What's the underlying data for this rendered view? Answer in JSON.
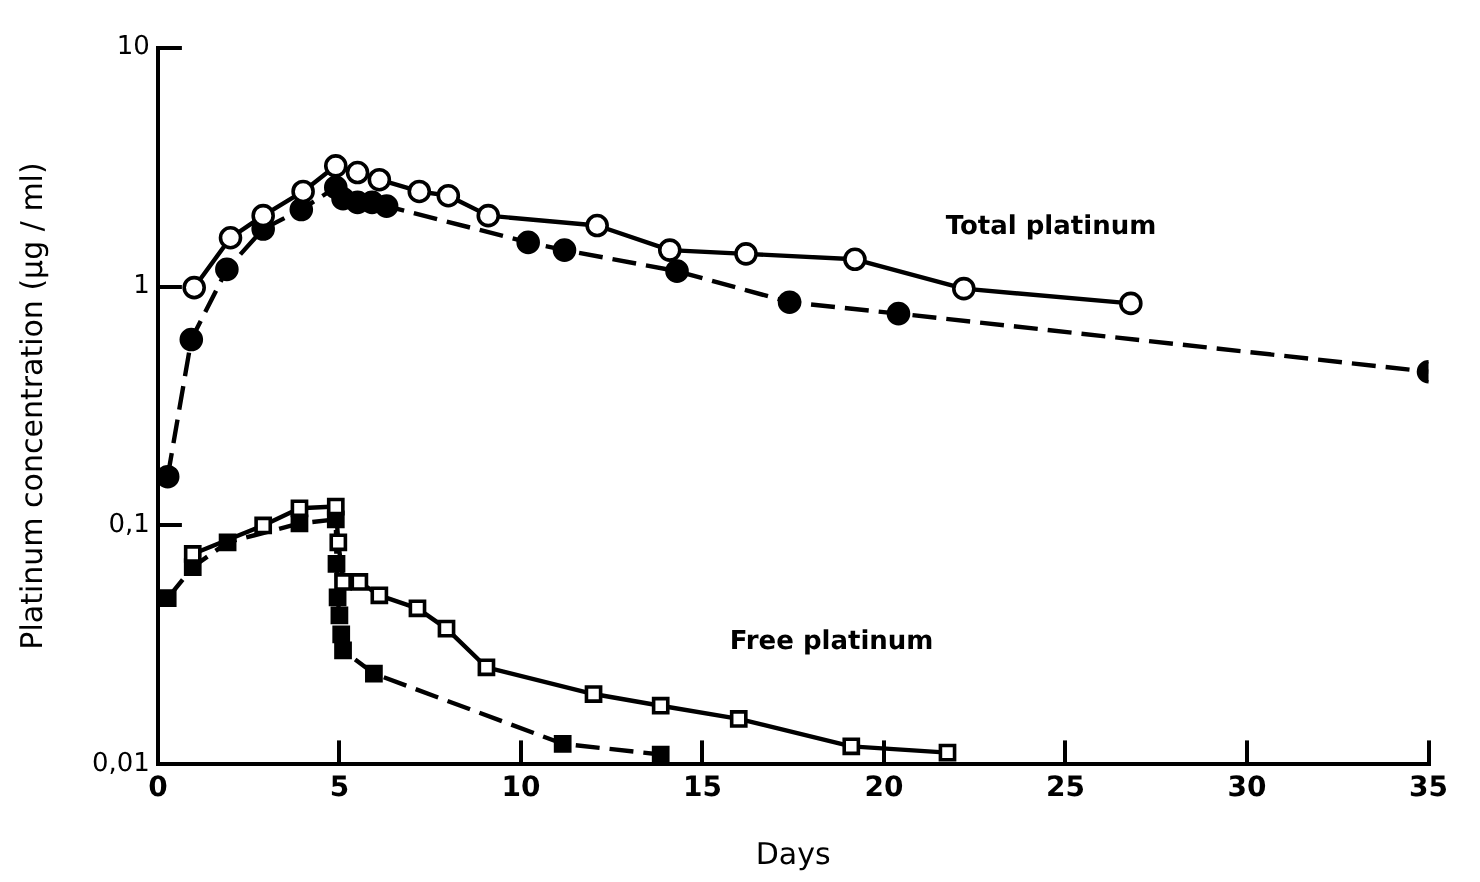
{
  "chart_data": {
    "type": "line",
    "xlabel": "Days",
    "ylabel": "Platinum concentration (µg / ml)",
    "log": "y",
    "xlim": [
      0,
      35
    ],
    "xticks": [
      0,
      5,
      10,
      15,
      20,
      25,
      30,
      35
    ],
    "ylim": [
      0.01,
      10
    ],
    "yticks": [
      {
        "value": 0.01,
        "label": "0,01"
      },
      {
        "value": 0.1,
        "label": "0,1"
      },
      1,
      10
    ],
    "grid": false,
    "legend": false,
    "annotations": [
      "Total platinum",
      "Free platinum"
    ],
    "series": [
      {
        "color": "#000000",
        "marker": "circle",
        "line_style": "solid",
        "x": [
          1.0,
          2.0,
          2.9,
          4.0,
          4.9,
          5.5,
          6.1,
          7.2,
          8.0,
          9.1,
          12.1,
          14.1,
          16.2,
          19.2,
          22.2,
          26.8
        ],
        "values": [
          0.99,
          1.6,
          1.98,
          2.5,
          3.2,
          3.0,
          2.8,
          2.5,
          2.4,
          1.98,
          1.8,
          1.42,
          1.37,
          1.3,
          0.98,
          0.85
        ]
      },
      {
        "color": "#000000",
        "marker": "circle",
        "line_style": "dashed",
        "x": [
          0.27,
          0.92,
          1.9,
          2.9,
          3.95,
          4.9,
          5.1,
          5.5,
          5.9,
          6.3,
          10.2,
          11.2,
          14.3,
          17.4,
          20.4,
          35
        ],
        "values": [
          0.16,
          0.6,
          1.18,
          1.74,
          2.1,
          2.6,
          2.33,
          2.25,
          2.25,
          2.17,
          1.53,
          1.42,
          1.16,
          0.86,
          0.77,
          0.44
        ]
      },
      {
        "color": "#000000",
        "marker": "square",
        "line_style": "solid",
        "x": [
          0.96,
          2.9,
          3.9,
          4.9,
          4.97,
          5.1,
          5.55,
          6.1,
          7.15,
          7.95,
          9.05,
          12.0,
          13.85,
          16.0,
          19.1,
          21.75
        ],
        "values": [
          0.076,
          0.1,
          0.118,
          0.12,
          0.085,
          0.058,
          0.058,
          0.051,
          0.045,
          0.037,
          0.0255,
          0.0197,
          0.0176,
          0.0155,
          0.0119,
          0.0112
        ]
      },
      {
        "color": "#000000",
        "marker": "square",
        "line_style": "dashed",
        "x": [
          0.27,
          0.96,
          1.92,
          3.9,
          4.9,
          4.92,
          4.95,
          5.0,
          5.05,
          5.1,
          5.95,
          11.15,
          13.85
        ],
        "values": [
          0.0496,
          0.067,
          0.085,
          0.102,
          0.106,
          0.069,
          0.05,
          0.042,
          0.035,
          0.03,
          0.024,
          0.0122,
          0.011
        ]
      }
    ]
  }
}
